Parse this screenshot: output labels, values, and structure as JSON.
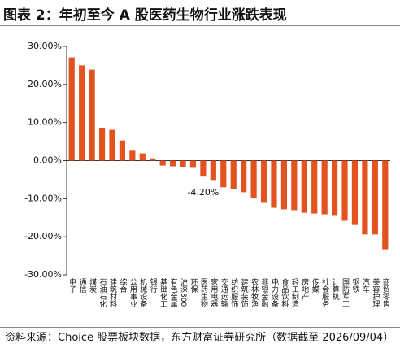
{
  "chart_data": {
    "type": "bar",
    "title": "图表 2：年初至今 A 股医药生物行业涨跌表现",
    "source": "资料来源：Choice 股票板块数据，东方财富证券研究所（数据截至 2026/09/04）",
    "categories": [
      "电子",
      "通信",
      "煤炭",
      "石油石化",
      "建筑材料",
      "综合",
      "公用事业",
      "机械设备",
      "银行",
      "基础化工",
      "有色金属",
      "沪深300",
      "环保",
      "医药生物",
      "家用电器",
      "交通运输",
      "纺织服饰",
      "建筑装饰",
      "农林牧渔",
      "非银金融",
      "电力设备",
      "食品饮料",
      "轻工制造",
      "房地产",
      "传媒",
      "社会服务",
      "计算机",
      "国防军工",
      "钢铁",
      "汽车",
      "美容护理",
      "商贸零售"
    ],
    "values": [
      27.1,
      25.0,
      23.9,
      8.5,
      8.1,
      5.3,
      2.6,
      1.9,
      0.6,
      -1.3,
      -1.5,
      -1.7,
      -1.9,
      -4.2,
      -5.3,
      -7.0,
      -7.5,
      -8.3,
      -9.8,
      -11.1,
      -12.4,
      -12.8,
      -13.0,
      -13.7,
      -13.9,
      -14.1,
      -14.5,
      -15.8,
      -16.9,
      -19.4,
      -19.4,
      -23.3
    ],
    "value_labels": [
      null,
      null,
      null,
      null,
      null,
      null,
      null,
      null,
      null,
      null,
      null,
      null,
      null,
      "-4.20%",
      null,
      null,
      null,
      null,
      null,
      null,
      null,
      null,
      null,
      null,
      null,
      null,
      null,
      null,
      null,
      null,
      null,
      null
    ],
    "color": "#e2531f",
    "ylim": [
      -30,
      30
    ],
    "yticks": [
      {
        "value": -30,
        "label": "-30.00%"
      },
      {
        "value": -20,
        "label": "-20.00%"
      },
      {
        "value": -10,
        "label": "-10.00%"
      },
      {
        "value": 0,
        "label": "0.00%"
      },
      {
        "value": 10,
        "label": "10.00%"
      },
      {
        "value": 20,
        "label": "20.00%"
      },
      {
        "value": 30,
        "label": "30.00%"
      }
    ],
    "grid": false
  }
}
